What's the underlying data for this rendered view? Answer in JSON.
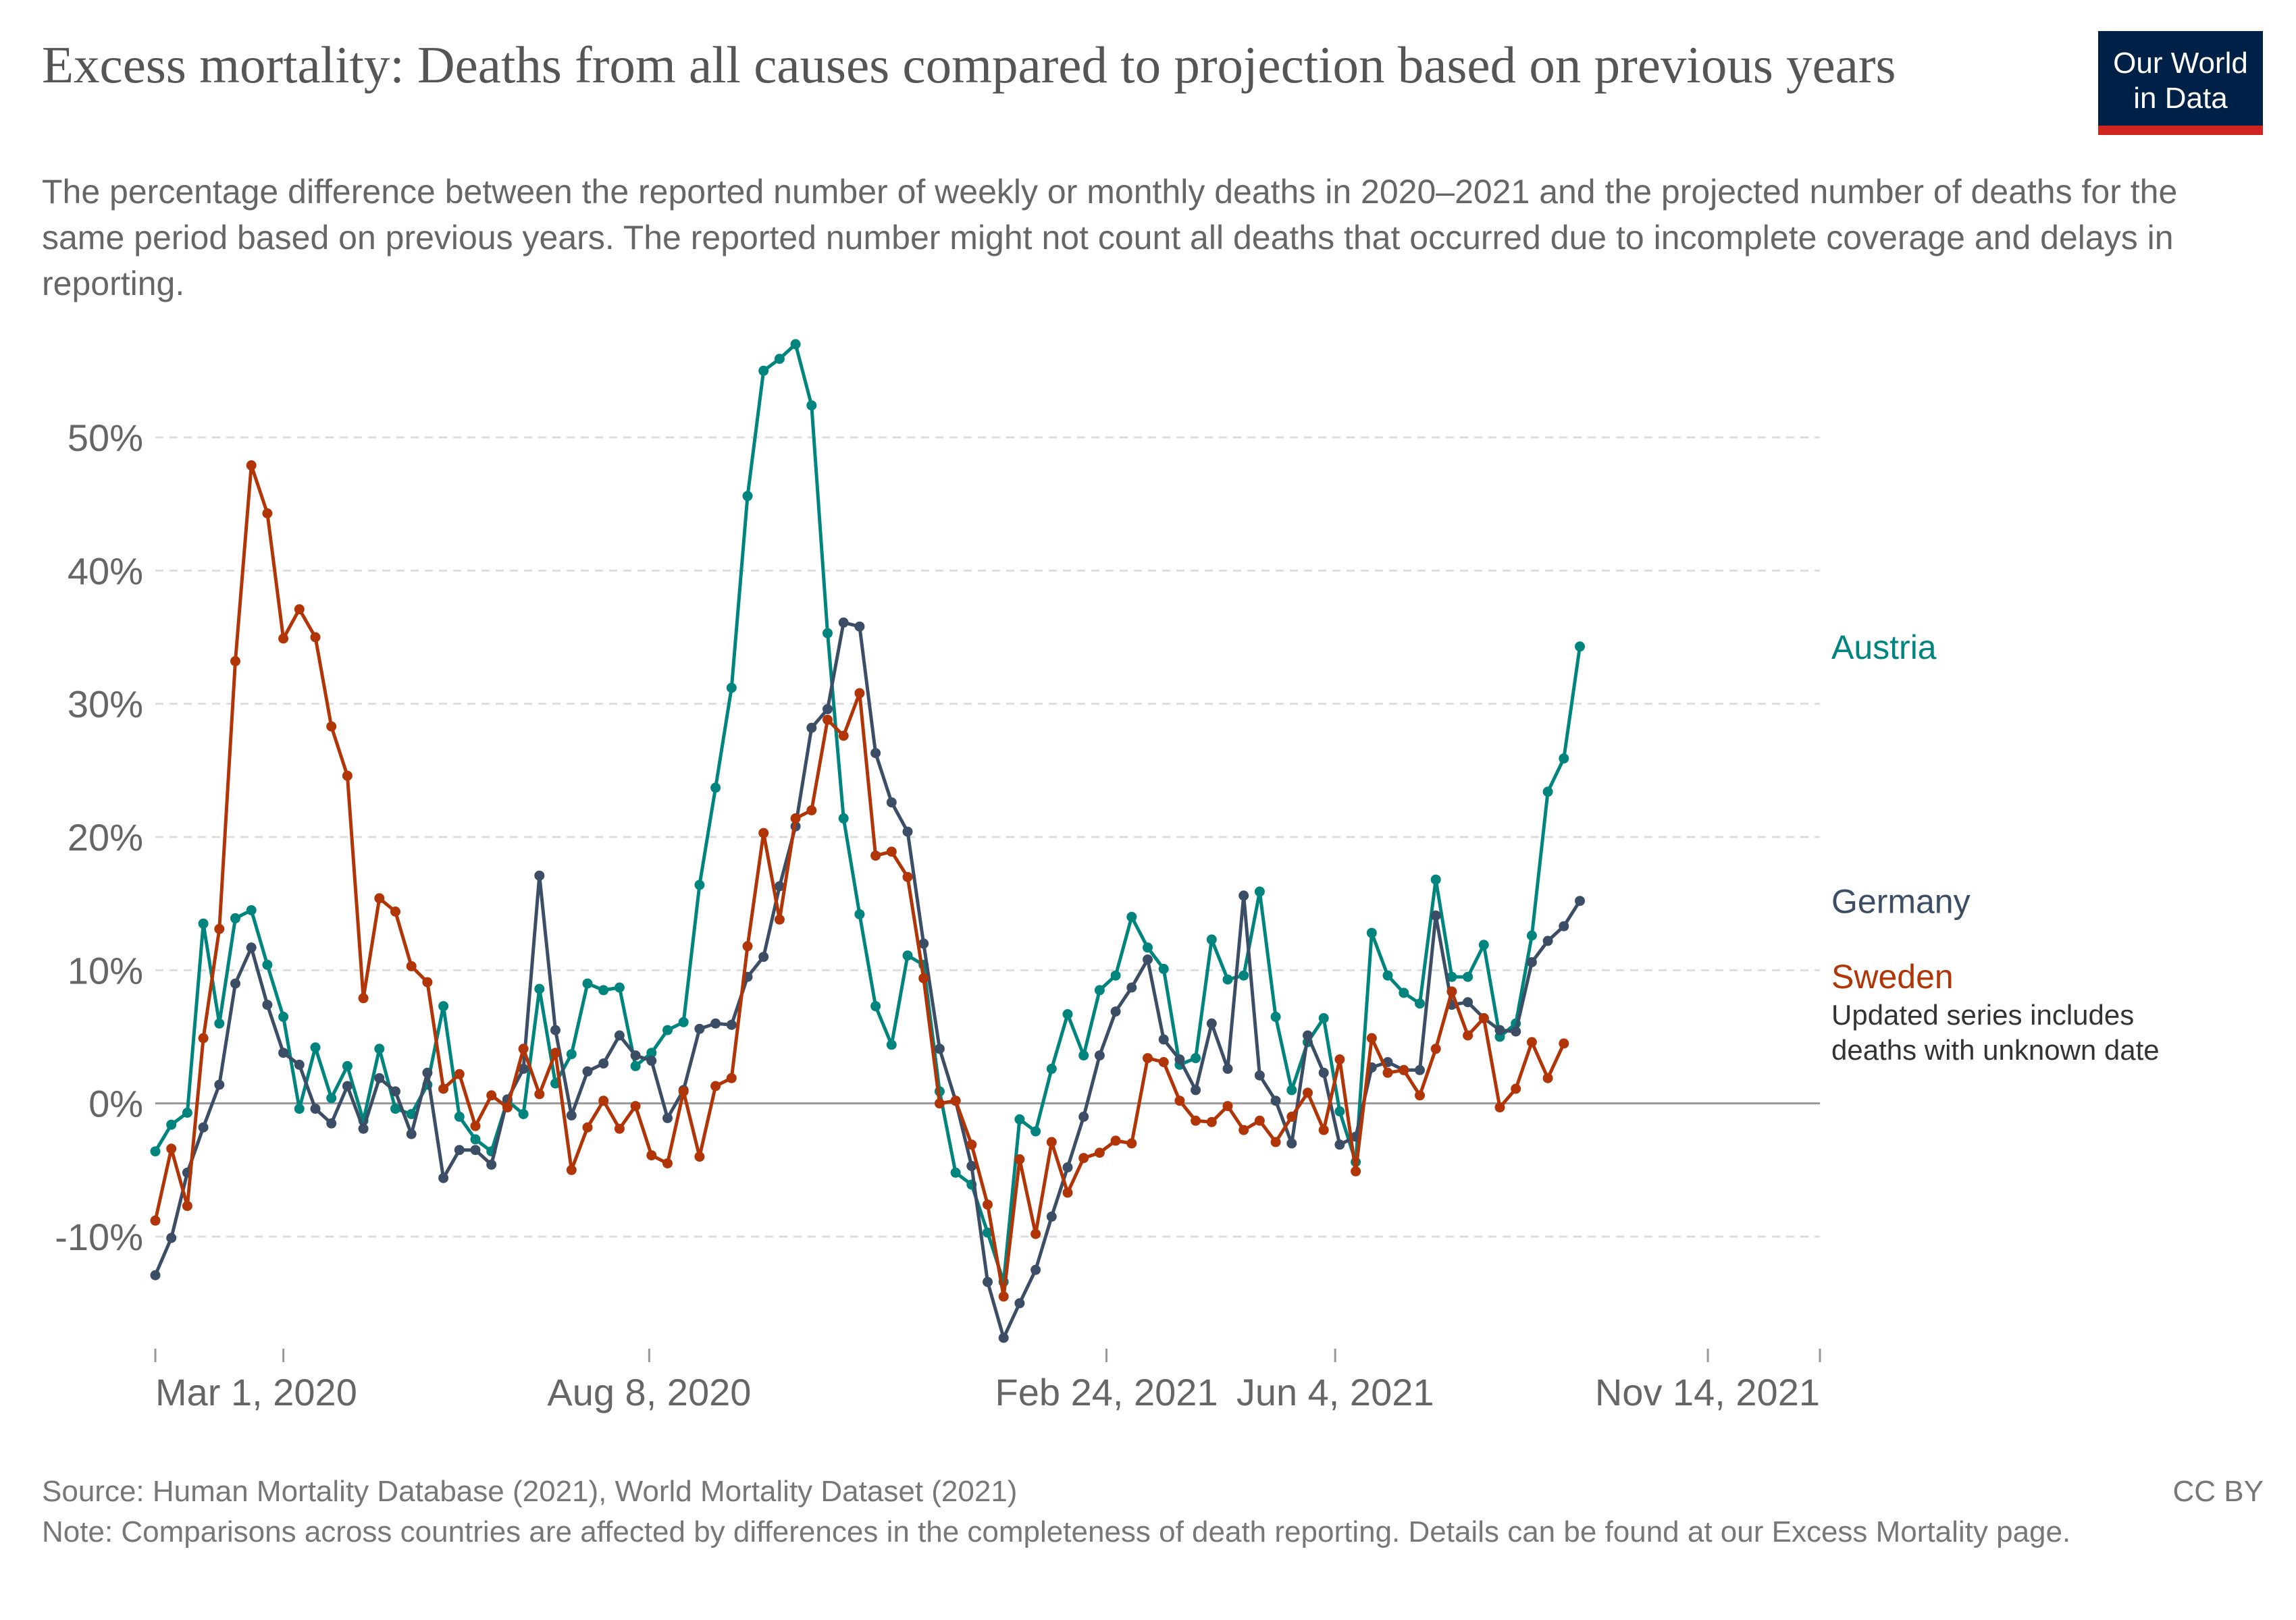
{
  "title": "Excess mortality: Deaths from all causes compared to projection based on previous years",
  "subtitle": "The percentage difference between the reported number of weekly or monthly deaths in 2020–2021 and the projected number of deaths for the same period based on previous years. The reported number might not count all deaths that occurred due to incomplete coverage and delays in reporting.",
  "logo": {
    "line1": "Our World",
    "line2": "in Data"
  },
  "source": "Source: Human Mortality Database (2021), World Mortality Dataset (2021)",
  "note": "Note: Comparisons across countries are affected by differences in the completeness of death reporting. Details can be found at our Excess Mortality page.",
  "license": "CC BY",
  "colors": {
    "Austria": "#00847e",
    "Germany": "#3c4e66",
    "Sweden": "#b13507",
    "grid": "#dddddd",
    "zero": "#999999",
    "text": "#666666"
  },
  "chart_data": {
    "type": "line",
    "title": "Excess mortality: Deaths from all causes compared to projection based on previous years",
    "xlabel": "",
    "ylabel": "",
    "ylim": [
      -17.5,
      57.5
    ],
    "xlim": [
      "2020-01-05",
      "2022-01-02"
    ],
    "grid": true,
    "y_ticks": [
      -10,
      0,
      10,
      20,
      30,
      40,
      50
    ],
    "y_tick_labels": [
      "-10%",
      "0%",
      "10%",
      "20%",
      "30%",
      "40%",
      "50%"
    ],
    "x_ticks": [
      "2020-03-01",
      "2020-08-08",
      "2021-02-24",
      "2021-06-04",
      "2021-11-14"
    ],
    "x_tick_labels": [
      "Mar 1, 2020",
      "Aug 8, 2020",
      "Feb 24, 2021",
      "Jun 4, 2021",
      "Nov 14, 2021"
    ],
    "series": [
      {
        "name": "Austria",
        "label": "Austria",
        "x_start": "2020-01-05",
        "x_step_days": 7,
        "values": [
          -3.6,
          -1.6,
          -0.7,
          13.5,
          6.0,
          13.9,
          14.5,
          10.4,
          6.5,
          -0.4,
          4.2,
          0.4,
          2.8,
          -1.3,
          4.1,
          -0.4,
          -0.8,
          1.4,
          7.3,
          -1.0,
          -2.7,
          -3.6,
          0.2,
          -0.8,
          8.6,
          1.5,
          3.7,
          9.0,
          8.5,
          8.7,
          2.8,
          3.8,
          5.5,
          6.1,
          16.4,
          23.7,
          31.2,
          45.6,
          55.0,
          55.9,
          57.0,
          52.4,
          35.3,
          21.4,
          14.2,
          7.3,
          4.4,
          11.1,
          10.4,
          0.9,
          -5.2,
          -6.1,
          -9.7,
          -13.4,
          -1.2,
          -2.1,
          2.6,
          6.7,
          3.6,
          8.5,
          9.6,
          14.0,
          11.7,
          10.1,
          2.9,
          3.4,
          12.3,
          9.3,
          9.6,
          15.9,
          6.5,
          1.0,
          4.6,
          6.4,
          -0.6,
          -4.4,
          12.8,
          9.6,
          8.3,
          7.5,
          16.8,
          9.5,
          9.5,
          11.9,
          5.0,
          6.0,
          12.6,
          23.4,
          25.9,
          34.3
        ]
      },
      {
        "name": "Germany",
        "label": "Germany",
        "x_start": "2020-01-05",
        "x_step_days": 7,
        "values": [
          -12.9,
          -10.1,
          -5.2,
          -1.8,
          1.4,
          9.0,
          11.7,
          7.4,
          3.8,
          2.9,
          -0.4,
          -1.5,
          1.3,
          -1.9,
          1.9,
          0.9,
          -2.3,
          2.3,
          -5.6,
          -3.5,
          -3.5,
          -4.6,
          0.3,
          2.6,
          17.1,
          5.5,
          -0.9,
          2.4,
          3.0,
          5.1,
          3.6,
          3.2,
          -1.1,
          1.0,
          5.6,
          6.0,
          5.9,
          9.5,
          11.0,
          16.3,
          20.8,
          28.2,
          29.6,
          36.1,
          35.8,
          26.3,
          22.6,
          20.4,
          12.0,
          4.1,
          0.2,
          -4.7,
          -13.4,
          -17.6,
          -15.0,
          -12.5,
          -8.5,
          -4.8,
          -1.0,
          3.6,
          6.9,
          8.7,
          10.8,
          4.8,
          3.3,
          1.0,
          6.0,
          2.6,
          15.6,
          2.1,
          0.2,
          -3.0,
          5.1,
          2.3,
          -3.1,
          -2.5,
          2.7,
          3.1,
          2.5,
          2.5,
          14.1,
          7.4,
          7.6,
          6.4,
          5.5,
          5.4,
          10.6,
          12.2,
          13.3,
          15.2
        ]
      },
      {
        "name": "Sweden",
        "label": "Sweden",
        "x_start": "2020-01-05",
        "x_step_days": 7,
        "values": [
          -8.8,
          -3.4,
          -7.7,
          4.9,
          13.1,
          33.2,
          47.9,
          44.3,
          34.9,
          37.1,
          35.0,
          28.3,
          24.6,
          7.9,
          15.4,
          14.4,
          10.3,
          9.1,
          1.1,
          2.2,
          -1.7,
          0.6,
          -0.3,
          4.1,
          0.7,
          3.8,
          -5.0,
          -1.8,
          0.2,
          -1.9,
          -0.2,
          -3.9,
          -4.5,
          0.9,
          -4.0,
          1.3,
          1.9,
          11.8,
          20.3,
          13.8,
          21.4,
          22.0,
          28.8,
          27.6,
          30.8,
          18.6,
          18.9,
          17.0,
          9.4,
          0.0,
          0.2,
          -3.1,
          -7.6,
          -14.5,
          -4.2,
          -9.8,
          -2.9,
          -6.7,
          -4.1,
          -3.7,
          -2.8,
          -3.0,
          3.4,
          3.1,
          0.2,
          -1.3,
          -1.4,
          -0.2,
          -2.0,
          -1.3,
          -2.9,
          -1.0,
          0.8,
          -2.0,
          3.3,
          -5.1,
          4.9,
          2.3,
          2.5,
          0.6,
          4.1,
          8.4,
          5.1,
          6.4,
          -0.3,
          1.1,
          4.6,
          1.9,
          4.5
        ]
      }
    ],
    "annotations": [
      {
        "series": "Sweden",
        "text": "Updated series includes deaths with unknown date"
      }
    ]
  }
}
